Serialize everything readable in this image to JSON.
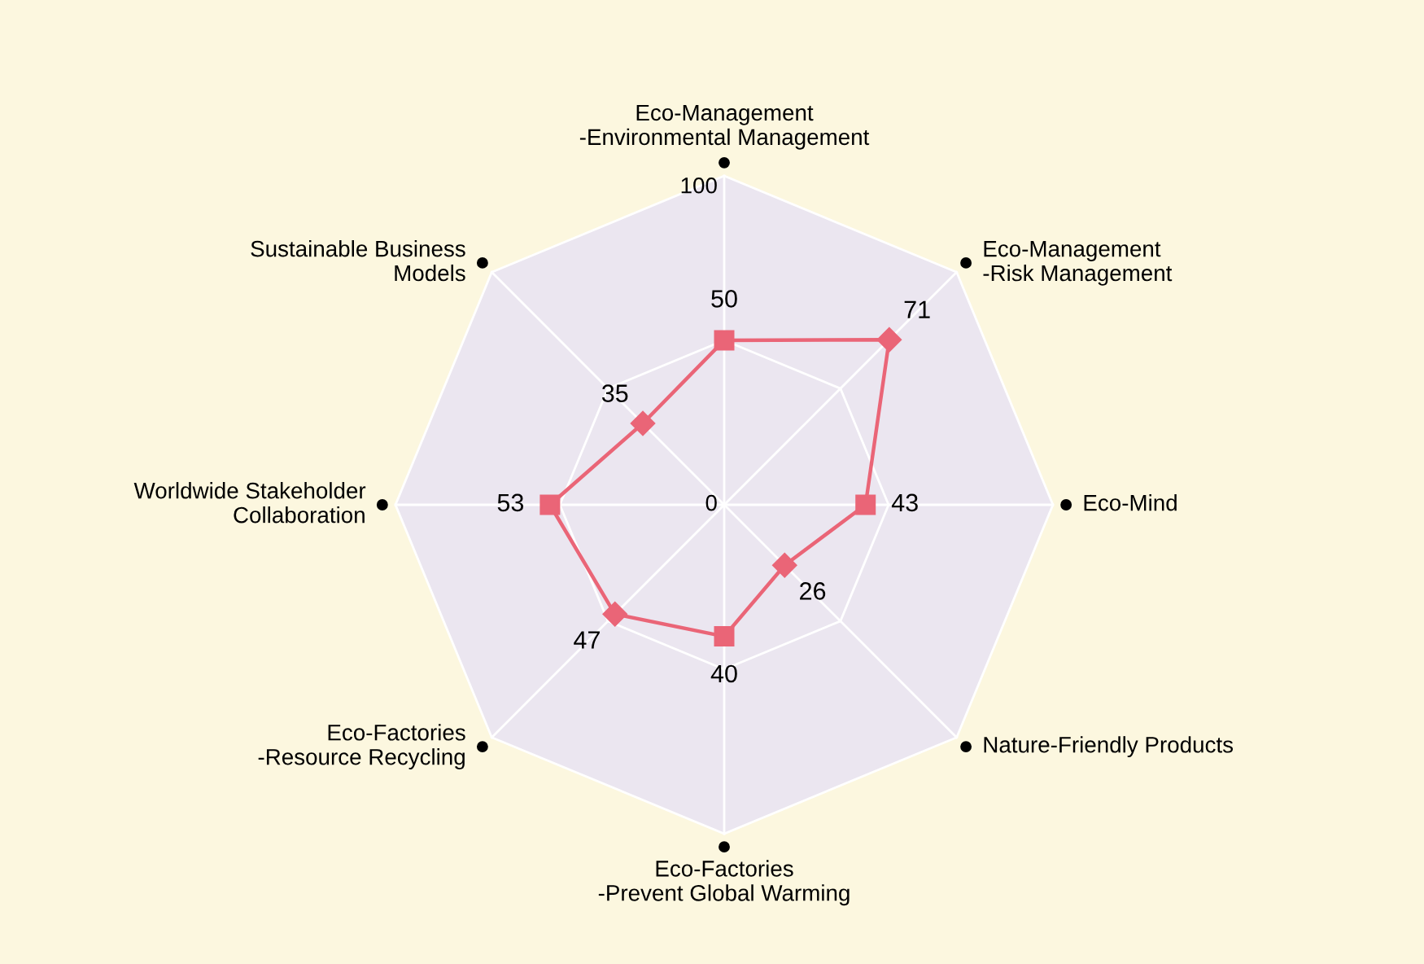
{
  "chart_data": {
    "type": "radar",
    "categories": [
      "Eco-Management\n-Environmental Management",
      "Eco-Management\n-Risk Management",
      "Eco-Mind",
      "Nature-Friendly Products",
      "Eco-Factories\n-Prevent Global Warming",
      "Eco-Factories\n-Resource Recycling",
      "Worldwide Stakeholder\nCollaboration",
      "Sustainable Business\nModels"
    ],
    "series": [
      {
        "color": "#ea6577",
        "values": [
          50,
          71,
          43,
          26,
          40,
          47,
          53,
          35
        ],
        "marker": [
          "square",
          "diamond",
          "square",
          "diamond",
          "square",
          "diamond",
          "square",
          "diamond"
        ]
      }
    ],
    "ylim": [
      0,
      100
    ],
    "yticks": [
      0,
      100
    ],
    "grid": true,
    "data_labels": true,
    "line_style": "solid"
  }
}
